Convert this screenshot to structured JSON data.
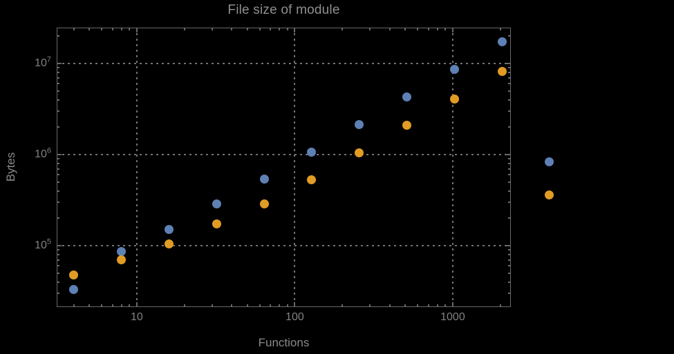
{
  "window": {
    "background_color": "#000000",
    "text_color": "#8a8a8a"
  },
  "chart_data": {
    "type": "scatter",
    "title": "File size of module",
    "xlabel": "Functions",
    "ylabel": "Bytes",
    "x_scale": "log",
    "y_scale": "log",
    "grid": "dotted",
    "legend": "none",
    "frame_color": "#696969",
    "grid_color": "#737373",
    "xlim": [
      3.11,
      2333
    ],
    "ylim": [
      21200,
      24800000
    ],
    "x_ticks": [
      10,
      100,
      1000
    ],
    "x_tick_labels": [
      "10",
      "100",
      "1000"
    ],
    "y_ticks": [
      100000,
      1000000,
      10000000
    ],
    "y_tick_labels": [
      "10^5",
      "10^6",
      "10^7"
    ],
    "x": [
      4,
      8,
      16,
      32,
      64,
      128,
      256,
      512,
      1024,
      2048,
      4096
    ],
    "series": [
      {
        "name": "blue",
        "color": "#5E81B5",
        "values": [
          33000,
          86000,
          152000,
          290000,
          540000,
          1070000,
          2150000,
          4300000,
          8600000,
          17300000,
          840000
        ]
      },
      {
        "name": "orange",
        "color": "#E19C24",
        "values": [
          48000,
          70000,
          105000,
          172000,
          290000,
          530000,
          1040000,
          2100000,
          4100000,
          8200000,
          360000
        ]
      }
    ]
  }
}
